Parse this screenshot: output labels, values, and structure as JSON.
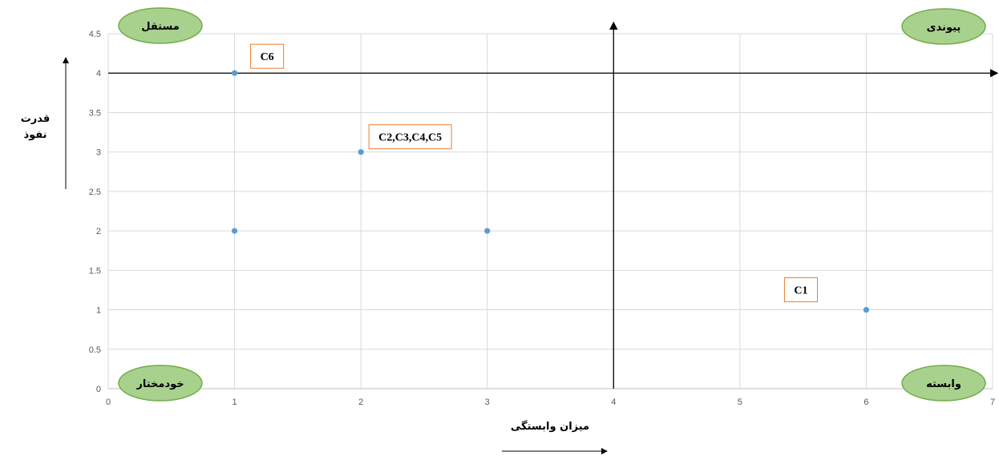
{
  "chart_data": {
    "type": "scatter",
    "xlabel": "میزان وابستگی",
    "ylabel_lines": [
      "قدرت",
      "نفوذ"
    ],
    "xlim": [
      0,
      7
    ],
    "ylim": [
      0,
      4.5
    ],
    "x_ticks": [
      "0",
      "1",
      "2",
      "3",
      "4",
      "5",
      "6",
      "7"
    ],
    "y_ticks": [
      "0",
      "0.5",
      "1",
      "1.5",
      "2",
      "2.5",
      "3",
      "3.5",
      "4",
      "4.5"
    ],
    "grid": true,
    "divider": {
      "x": 4,
      "y": 4
    },
    "points": [
      {
        "x": 1,
        "y": 4
      },
      {
        "x": 1,
        "y": 2
      },
      {
        "x": 2,
        "y": 3
      },
      {
        "x": 3,
        "y": 2
      },
      {
        "x": 6,
        "y": 1
      }
    ],
    "point_labels": [
      {
        "text": "C6",
        "x": 1,
        "y": 4
      },
      {
        "text": "C2,C3,C4,C5",
        "x": 2,
        "y": 3
      },
      {
        "text": "C1",
        "x": 6,
        "y": 1
      }
    ],
    "quadrants": [
      {
        "text": "مستقل",
        "position": "top-left"
      },
      {
        "text": "پیوندی",
        "position": "top-right"
      },
      {
        "text": "خودمختار",
        "position": "bottom-left"
      },
      {
        "text": "وابسته",
        "position": "bottom-right"
      }
    ],
    "colors": {
      "point": "#5b9bd5",
      "grid": "#d9d9d9",
      "label_border": "#ed7d31",
      "quadrant_fill": "#a9d18e",
      "quadrant_border": "#70ad47"
    }
  }
}
